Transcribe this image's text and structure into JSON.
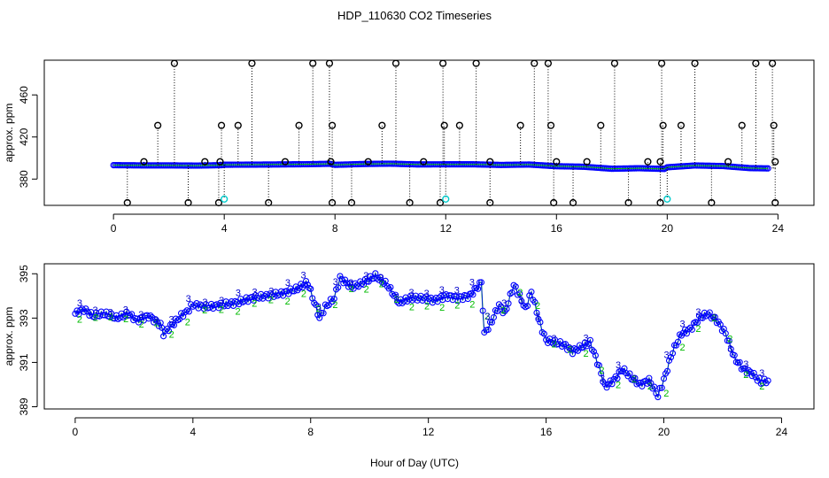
{
  "figure": {
    "title": "HDP_110630  CO2 Timeseries",
    "xlabel": "Hour of Day (UTC)"
  },
  "colors": {
    "axis": "#000000",
    "series_main": "#0000ff",
    "series_label_2": "#00bb00",
    "series_label_3": "#0000cc",
    "outlier": "#000000",
    "cyan_marker": "#00cccc",
    "dotted_line": "#000000"
  },
  "chart_data": [
    {
      "type": "scatter",
      "title": "",
      "xlabel": "",
      "ylabel": "approx. ppm",
      "xlim": [
        -2.5,
        25.3
      ],
      "ylim": [
        355,
        493
      ],
      "xticks": [
        0,
        4,
        8,
        12,
        16,
        20,
        24
      ],
      "yticks": [
        380,
        420,
        460
      ],
      "series": [
        {
          "name": "CO2 (blue circles)",
          "x": [
            0.0,
            1.0,
            2.0,
            3.0,
            3.9,
            4.0,
            5.0,
            6.0,
            7.0,
            7.8,
            8.0,
            9.0,
            10.0,
            11.0,
            12.0,
            13.0,
            14.0,
            15.0,
            16.0,
            17.0,
            18.0,
            19.0,
            19.9,
            20.0,
            21.0,
            22.0,
            23.0,
            23.7
          ],
          "y": [
            393.2,
            393.0,
            393.0,
            392.8,
            393.2,
            393.6,
            393.7,
            393.9,
            394.1,
            394.5,
            393.5,
            394.3,
            394.6,
            393.9,
            394.0,
            394.0,
            393.4,
            393.8,
            392.2,
            391.7,
            389.8,
            390.3,
            389.6,
            391.2,
            392.9,
            392.4,
            390.4,
            390.1
          ]
        },
        {
          "name": "Flagged high (black circles)",
          "x": [
            1.6,
            2.2,
            3.9,
            4.5,
            5.0,
            6.7,
            7.2,
            7.8,
            7.9,
            9.7,
            10.2,
            11.9,
            11.95,
            12.5,
            13.1,
            14.7,
            15.2,
            15.7,
            15.8,
            17.6,
            18.1,
            19.8,
            19.85,
            20.5,
            21.0,
            22.7,
            23.2,
            23.8,
            23.85
          ],
          "y": [
            431,
            490,
            431,
            431,
            490,
            431,
            490,
            490,
            431,
            431,
            490,
            490,
            431,
            431,
            490,
            431,
            490,
            490,
            431,
            431,
            490,
            490,
            431,
            431,
            490,
            431,
            490,
            490,
            431
          ]
        },
        {
          "name": "Flagged mid (black circles)",
          "x": [
            1.1,
            3.3,
            3.85,
            6.2,
            7.85,
            9.2,
            11.2,
            13.6,
            16.0,
            17.1,
            19.3,
            19.75,
            22.2,
            23.9
          ],
          "y": [
            396.5,
            396.5,
            396.5,
            396.5,
            396.5,
            396.5,
            396.5,
            396.5,
            396.5,
            396.5,
            396.5,
            396.5,
            396.5,
            396.5
          ]
        },
        {
          "name": "Flagged low (black circles)",
          "x": [
            0.5,
            2.7,
            3.8,
            5.6,
            7.9,
            8.6,
            10.7,
            11.8,
            13.6,
            15.9,
            16.6,
            18.6,
            19.75,
            21.6,
            23.9
          ],
          "y": [
            357.5,
            357.5,
            357.5,
            357.5,
            357.5,
            357.5,
            357.5,
            357.5,
            357.5,
            357.5,
            357.5,
            357.5,
            357.5,
            357.5,
            357.5
          ]
        },
        {
          "name": "Cyan markers",
          "x": [
            4.0,
            12.0,
            20.0
          ],
          "y": [
            361,
            361,
            361
          ]
        }
      ]
    },
    {
      "type": "line",
      "title": "",
      "xlabel": "Hour of Day (UTC)",
      "ylabel": "approx. ppm",
      "xlim": [
        -1.05,
        25.1
      ],
      "ylim": [
        388.9,
        395.45
      ],
      "xticks": [
        0,
        4,
        8,
        12,
        16,
        20,
        24
      ],
      "yticks": [
        389,
        391,
        393,
        395
      ],
      "series": [
        {
          "name": "CO2 detail",
          "x": [
            0.0,
            0.3,
            0.6,
            1.0,
            1.4,
            1.8,
            2.1,
            2.5,
            2.9,
            3.0,
            3.3,
            3.6,
            3.8,
            4.0,
            4.5,
            5.0,
            5.5,
            6.0,
            6.5,
            7.0,
            7.5,
            7.9,
            8.0,
            8.3,
            8.5,
            8.8,
            9.0,
            9.4,
            9.8,
            10.2,
            10.6,
            11.0,
            11.4,
            11.8,
            12.2,
            12.6,
            13.0,
            13.4,
            13.8,
            13.9,
            14.1,
            14.4,
            14.6,
            14.9,
            15.1,
            15.3,
            15.5,
            15.8,
            16.0,
            16.3,
            16.6,
            16.9,
            17.2,
            17.5,
            17.8,
            18.0,
            18.3,
            18.6,
            18.9,
            19.2,
            19.5,
            19.8,
            20.0,
            20.3,
            20.6,
            20.9,
            21.2,
            21.5,
            21.8,
            22.1,
            22.4,
            22.7,
            23.0,
            23.3,
            23.6
          ],
          "y": [
            393.2,
            393.4,
            393.1,
            393.2,
            393.0,
            393.2,
            392.9,
            393.1,
            392.7,
            392.3,
            392.7,
            393.1,
            393.3,
            393.6,
            393.5,
            393.6,
            393.7,
            393.9,
            394.0,
            394.1,
            394.3,
            394.6,
            394.2,
            393.0,
            393.5,
            393.9,
            394.8,
            394.4,
            394.6,
            394.9,
            394.5,
            393.7,
            393.9,
            393.9,
            393.8,
            394.0,
            393.9,
            394.0,
            394.6,
            392.3,
            392.7,
            393.6,
            393.2,
            394.5,
            394.0,
            393.4,
            394.2,
            392.7,
            392.0,
            391.9,
            391.8,
            391.5,
            391.7,
            391.9,
            390.8,
            389.9,
            390.2,
            390.7,
            390.3,
            390.0,
            390.2,
            389.5,
            390.2,
            391.5,
            392.3,
            392.5,
            393.0,
            393.2,
            392.9,
            392.3,
            391.2,
            390.7,
            390.5,
            390.1,
            390.2
          ]
        }
      ]
    }
  ]
}
